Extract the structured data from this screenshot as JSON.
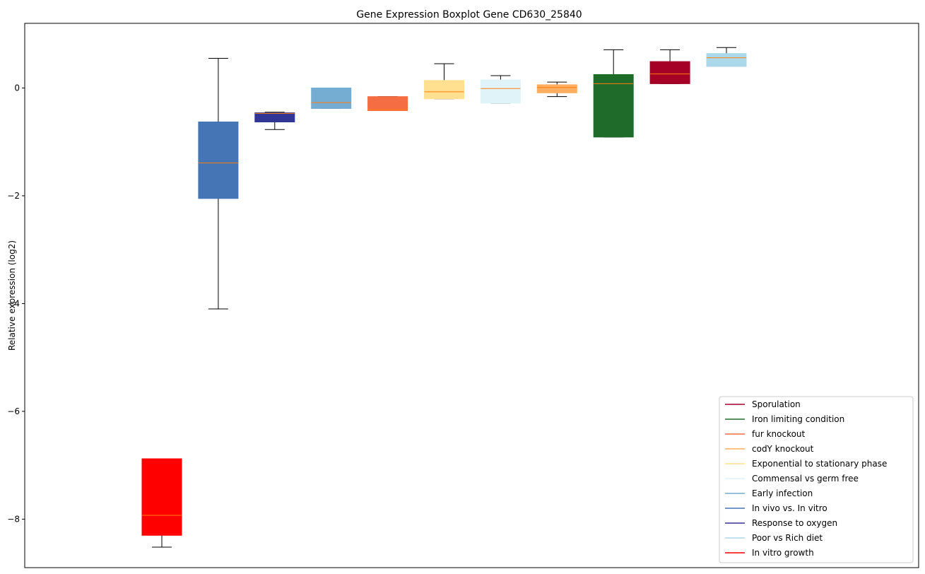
{
  "chart_data": {
    "type": "box",
    "title": "Gene Expression Boxplot Gene CD630_25840",
    "xlabel": "",
    "ylabel": "Relative expression (log2)",
    "ylim": [
      -8.9,
      1.2
    ],
    "yticks": [
      0,
      -2,
      -4,
      -6,
      -8
    ],
    "ytick_labels": [
      "0",
      "−2",
      "−4",
      "−6",
      "−8"
    ],
    "xticks": "none",
    "legend_position": "lower-right",
    "median_color": "#ff7f0e",
    "boxes": [
      {
        "name": "In vitro growth",
        "color": "#ff0000",
        "whisker_low": -8.52,
        "q1": -8.3,
        "median": -7.93,
        "q3": -6.88,
        "whisker_high": -6.88
      },
      {
        "name": "In vivo vs. In vitro",
        "color": "#4575b4",
        "whisker_low": -4.1,
        "q1": -2.05,
        "median": -1.39,
        "q3": -0.63,
        "whisker_high": 0.55
      },
      {
        "name": "Response to oxygen",
        "color": "#313695",
        "whisker_low": -0.77,
        "q1": -0.63,
        "median": -0.47,
        "q3": -0.46,
        "whisker_high": -0.45
      },
      {
        "name": "Early infection",
        "color": "#74add1",
        "whisker_low": -0.38,
        "q1": -0.38,
        "median": -0.27,
        "q3": 0.0,
        "whisker_high": 0.0
      },
      {
        "name": "fur knockout",
        "color": "#f46d43",
        "whisker_low": -0.42,
        "q1": -0.42,
        "median": -0.4,
        "q3": -0.16,
        "whisker_high": -0.16
      },
      {
        "name": "Exponential to stationary phase",
        "color": "#fee090",
        "whisker_low": -0.2,
        "q1": -0.2,
        "median": -0.07,
        "q3": 0.14,
        "whisker_high": 0.45
      },
      {
        "name": "Commensal vs germ free",
        "color": "#e0f3f8",
        "whisker_low": -0.28,
        "q1": -0.28,
        "median": -0.01,
        "q3": 0.15,
        "whisker_high": 0.23
      },
      {
        "name": "codY knockout",
        "color": "#fdae61",
        "whisker_low": -0.16,
        "q1": -0.09,
        "median": 0.01,
        "q3": 0.06,
        "whisker_high": 0.11
      },
      {
        "name": "Iron limiting condition",
        "color": "#1f6b2a",
        "whisker_low": -0.91,
        "q1": -0.91,
        "median": 0.08,
        "q3": 0.25,
        "whisker_high": 0.71
      },
      {
        "name": "Sporulation",
        "color": "#a50026",
        "whisker_low": 0.08,
        "q1": 0.08,
        "median": 0.26,
        "q3": 0.49,
        "whisker_high": 0.71
      },
      {
        "name": "Poor vs Rich diet",
        "color": "#abd9e9",
        "whisker_low": 0.4,
        "q1": 0.4,
        "median": 0.56,
        "q3": 0.64,
        "whisker_high": 0.75
      }
    ],
    "legend": [
      {
        "label": "Sporulation",
        "color": "#a50026"
      },
      {
        "label": "Iron limiting condition",
        "color": "#1f6b2a"
      },
      {
        "label": "fur knockout",
        "color": "#f46d43"
      },
      {
        "label": "codY knockout",
        "color": "#fdae61"
      },
      {
        "label": "Exponential to stationary phase",
        "color": "#fee090"
      },
      {
        "label": "Commensal vs germ free",
        "color": "#e0f3f8"
      },
      {
        "label": "Early infection",
        "color": "#74add1"
      },
      {
        "label": "In vivo vs. In vitro",
        "color": "#4575b4"
      },
      {
        "label": "Response to oxygen",
        "color": "#313695"
      },
      {
        "label": "Poor vs Rich diet",
        "color": "#abd9e9"
      },
      {
        "label": "In vitro growth",
        "color": "#ff0000"
      }
    ]
  }
}
